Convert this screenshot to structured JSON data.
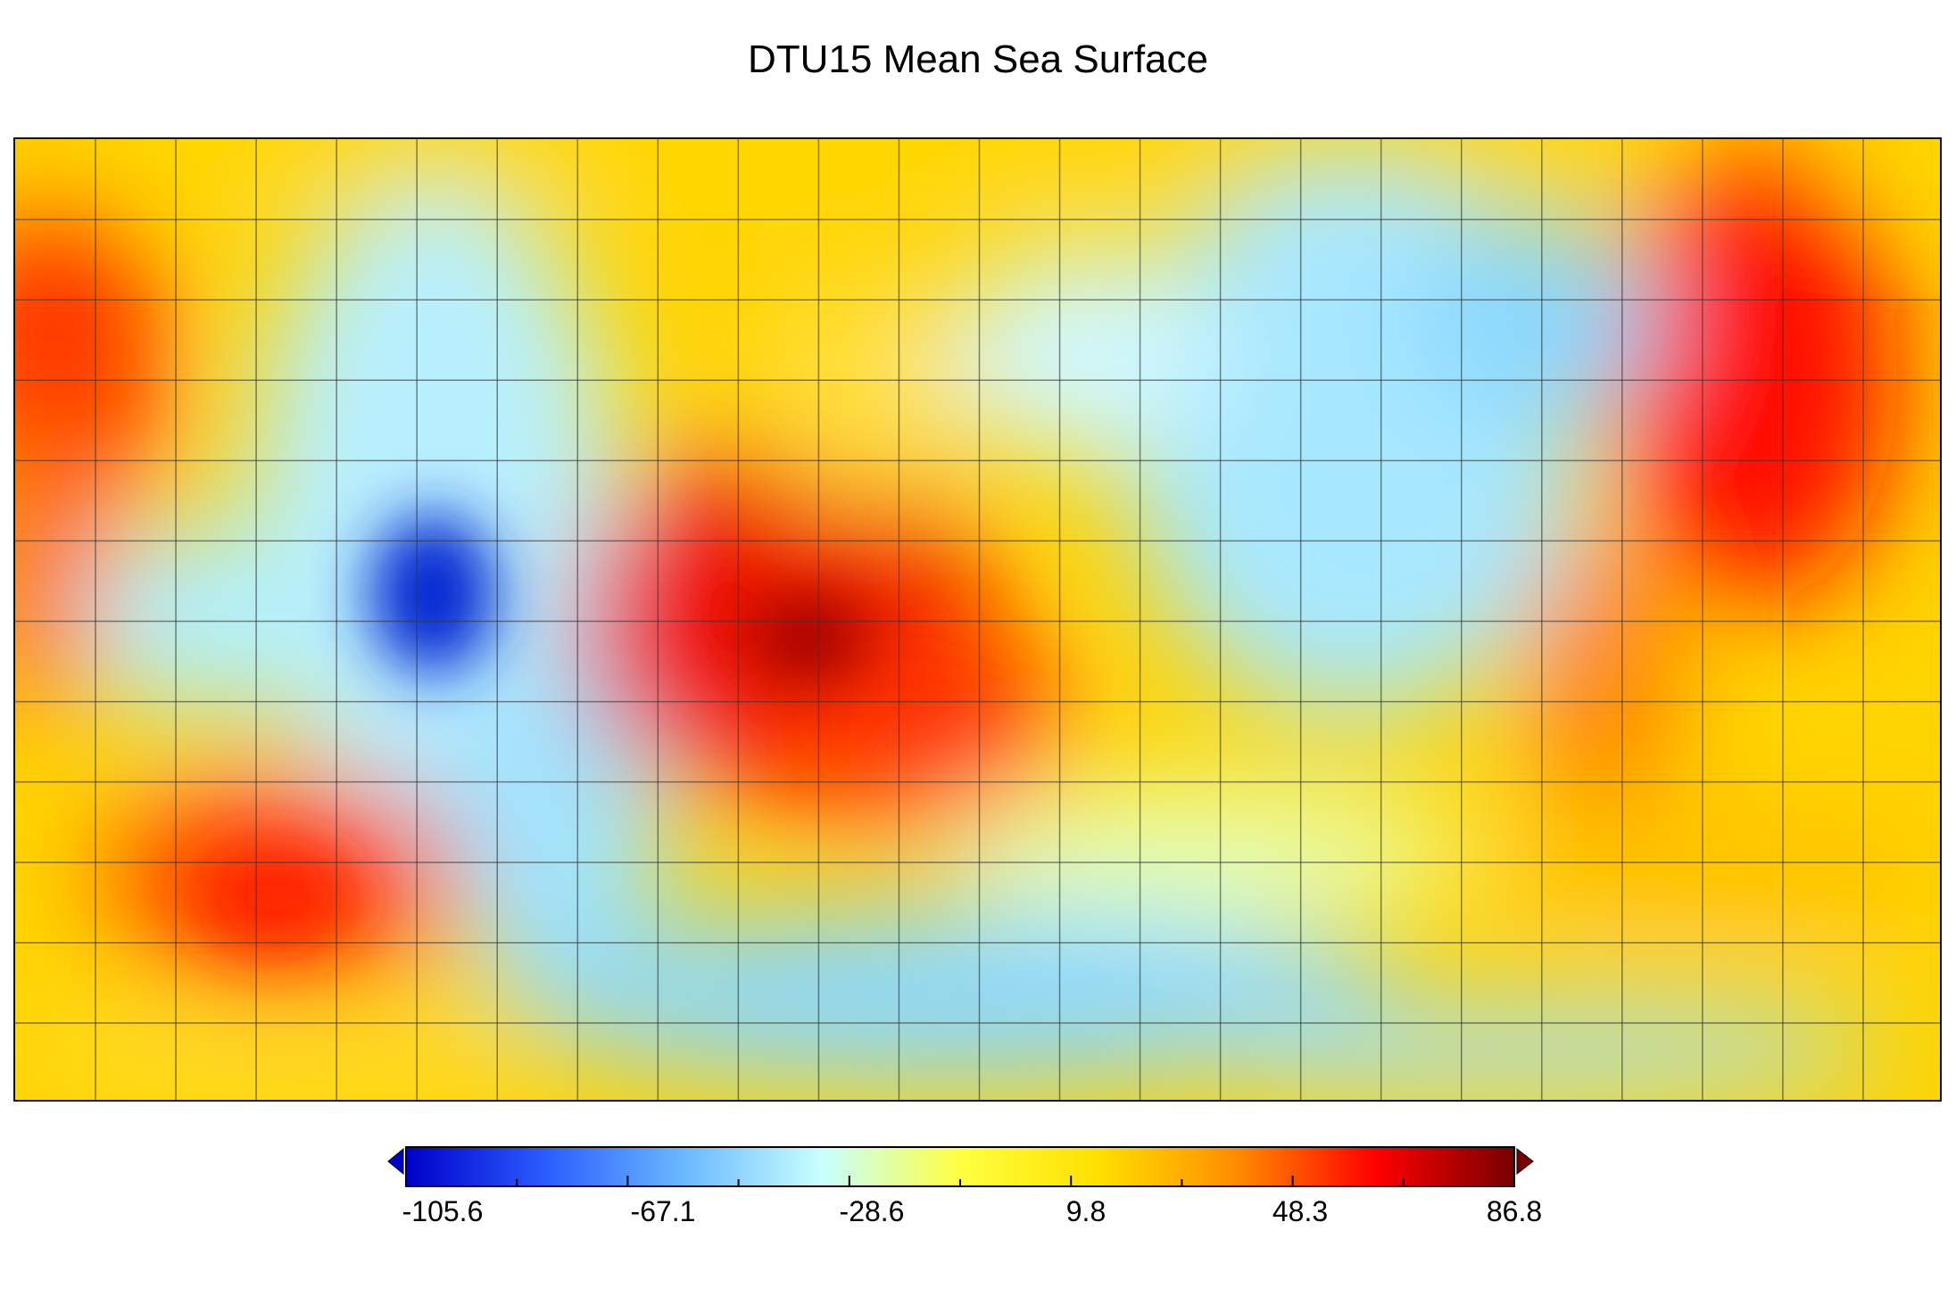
{
  "title": "DTU15 Mean Sea Surface",
  "colorbar": {
    "min": -105.6,
    "max": 86.8,
    "tick_labels": [
      "-105.6",
      "-67.1",
      "-28.6",
      "9.8",
      "48.3",
      "86.8"
    ],
    "extend": "both",
    "colormap": [
      "#0000c8",
      "#2a5cff",
      "#6ab8ff",
      "#c8ffff",
      "#ffff40",
      "#ffe000",
      "#ff8c00",
      "#ff0000",
      "#780000"
    ]
  },
  "map": {
    "projection": "equirectangular, Pacific-centered",
    "graticule_spacing_deg": 15,
    "coastlines": true
  }
}
